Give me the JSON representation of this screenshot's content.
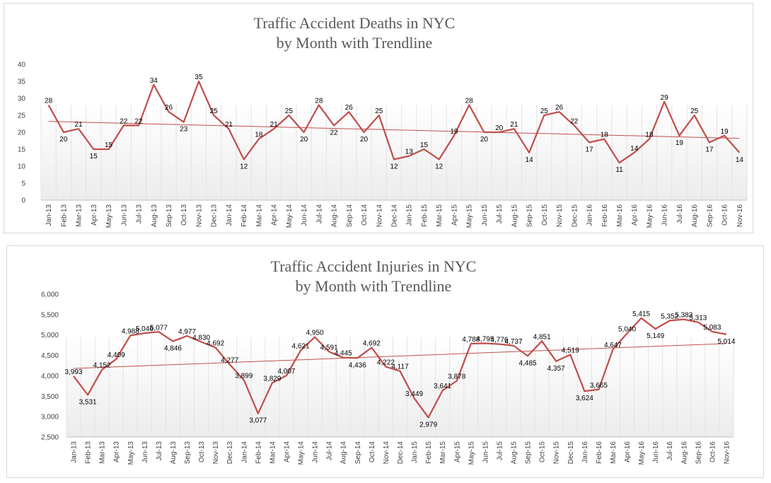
{
  "chart_data": [
    {
      "type": "line",
      "title": [
        "Traffic Accident Deaths in NYC",
        "by Month with  Trendline"
      ],
      "categories": [
        "Jan-13",
        "Feb-13",
        "Mar-13",
        "Apr-13",
        "May-13",
        "Jun-13",
        "Jul-13",
        "Aug-13",
        "Sep-13",
        "Oct-13",
        "Nov-13",
        "Dec-13",
        "Jan-14",
        "Feb-14",
        "Mar-14",
        "Apr-14",
        "May-14",
        "Jun-14",
        "Jul-14",
        "Aug-14",
        "Sep-14",
        "Oct-14",
        "Nov-14",
        "Dec-14",
        "Jan-15",
        "Feb-15",
        "Mar-15",
        "Apr-15",
        "May-15",
        "Jun-15",
        "Jul-15",
        "Aug-15",
        "Sep-15",
        "Oct-15",
        "Nov-15",
        "Dec-15",
        "Jan-16",
        "Feb-16",
        "Mar-16",
        "Apr-16",
        "May-16",
        "Jun-16",
        "Jul-16",
        "Aug-16",
        "Sep-16",
        "Oct-16",
        "Nov-16"
      ],
      "values": [
        28,
        20,
        21,
        15,
        15,
        22,
        22,
        34,
        26,
        23,
        35,
        25,
        21,
        12,
        18,
        21,
        25,
        20,
        28,
        22,
        26,
        20,
        25,
        12,
        13,
        15,
        12,
        19,
        28,
        20,
        20,
        21,
        14,
        25,
        26,
        22,
        17,
        18,
        11,
        14,
        18,
        29,
        19,
        25,
        17,
        19,
        14
      ],
      "data_labels": [
        "28",
        "20",
        "21",
        "15",
        "15",
        "22",
        "22",
        "34",
        "26",
        "23",
        "35",
        "25",
        "21",
        "12",
        "18",
        "21",
        "25",
        "20",
        "28",
        "22",
        "26",
        "20",
        "25",
        "12",
        "13",
        "15",
        "12",
        "19",
        "28",
        "20",
        "20",
        "21",
        "14",
        "25",
        "26",
        "22",
        "17",
        "18",
        "11",
        "14",
        "18",
        "29",
        "19",
        "25",
        "17",
        "19",
        "14"
      ],
      "trendline": {
        "start": 23.2,
        "end": 18.2
      },
      "ylim": [
        0,
        40
      ],
      "yticks": [
        "0",
        "5",
        "10",
        "15",
        "20",
        "25",
        "30",
        "35",
        "40"
      ],
      "xlabel": "",
      "ylabel": "",
      "line_color": "#c0504d",
      "trend_color": "#c0504d",
      "grid": "vertical"
    },
    {
      "type": "line",
      "title": [
        "Traffic Accident Injuries in NYC",
        "by Month with  Trendline"
      ],
      "categories": [
        "Jan-13",
        "Feb-13",
        "Mar-13",
        "Apr-13",
        "May-13",
        "Jun-13",
        "Jul-13",
        "Aug-13",
        "Sep-13",
        "Oct-13",
        "Nov-13",
        "Dec-13",
        "Jan-14",
        "Feb-14",
        "Mar-14",
        "Apr-14",
        "May-14",
        "Jun-14",
        "Jul-14",
        "Aug-14",
        "Sep-14",
        "Oct-14",
        "Nov-14",
        "Dec-14",
        "Jan-15",
        "Feb-15",
        "Mar-15",
        "Apr-15",
        "May-15",
        "Jun-15",
        "Jul-15",
        "Aug-15",
        "Sep-15",
        "Oct-15",
        "Nov-15",
        "Dec-15",
        "Jan-16",
        "Feb-16",
        "Mar-16",
        "Apr-16",
        "May-16",
        "Jun-16",
        "Jul-16",
        "Aug-16",
        "Sep-16",
        "Oct-16",
        "Nov-16"
      ],
      "values": [
        3993,
        3531,
        4152,
        4409,
        4988,
        5046,
        5077,
        4846,
        4977,
        4830,
        4692,
        4277,
        3899,
        3077,
        3829,
        4007,
        4621,
        4950,
        4591,
        4445,
        4436,
        4692,
        4222,
        4117,
        3449,
        2979,
        3641,
        3878,
        4788,
        4795,
        4776,
        4737,
        4485,
        4851,
        4357,
        4519,
        3624,
        3665,
        4647,
        5040,
        5415,
        5149,
        5352,
        5383,
        5313,
        5083,
        5014
      ],
      "data_labels": [
        "3,993",
        "3,531",
        "4,152",
        "4,409",
        "4,988",
        "5,046",
        "5,077",
        "4,846",
        "4,977",
        "4,830",
        "4,692",
        "4,277",
        "3,899",
        "3,077",
        "3,829",
        "4,007",
        "4,621",
        "4,950",
        "4,591",
        "4,445",
        "4,436",
        "4,692",
        "4,222",
        "4,117",
        "3,449",
        "2,979",
        "3,641",
        "3,878",
        "4,788",
        "4,795",
        "4,776",
        "4,737",
        "4,485",
        "4,851",
        "4,357",
        "4,519",
        "3,624",
        "3,665",
        "4,647",
        "5,040",
        "5,415",
        "5,149",
        "5,352",
        "5,383",
        "5,313",
        "5,083",
        "5,014"
      ],
      "trendline": {
        "start": 4180,
        "end": 4790
      },
      "ylim": [
        2500,
        6000
      ],
      "yticks": [
        "2,500",
        "3,000",
        "3,500",
        "4,000",
        "4,500",
        "5,000",
        "5,500",
        "6,000"
      ],
      "xlabel": "",
      "ylabel": "",
      "line_color": "#c0504d",
      "trend_color": "#c0504d",
      "grid": "vertical"
    }
  ]
}
